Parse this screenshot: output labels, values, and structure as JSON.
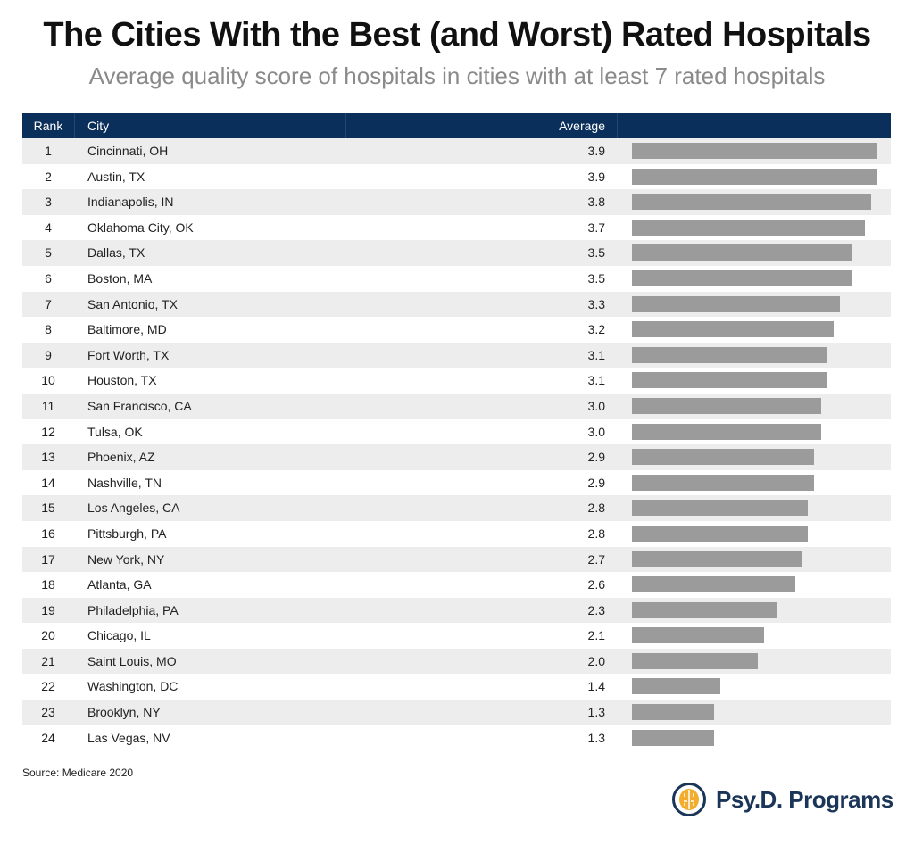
{
  "title": "The Cities With the Best (and Worst) Rated Hospitals",
  "subtitle": "Average quality score of hospitals in cities with at least 7 rated hospitals",
  "source": "Source: Medicare 2020",
  "logo": {
    "text": "Psy.D. Programs",
    "icon": "brain-icon"
  },
  "colors": {
    "header": "#0b2f5b",
    "bar": "#9b9b9b",
    "stripe": "#ededed",
    "logo": "#1a3558",
    "logo_accent": "#f2ad2e"
  },
  "chart_data": {
    "type": "bar",
    "orientation": "horizontal",
    "title": "The Cities With the Best (and Worst) Rated Hospitals",
    "columns": [
      "Rank",
      "City",
      "Average"
    ],
    "xlim": [
      0,
      3.9
    ],
    "grid": false,
    "rows": [
      {
        "rank": "1",
        "city": "Cincinnati, OH",
        "avg": "3.9"
      },
      {
        "rank": "2",
        "city": "Austin, TX",
        "avg": "3.9"
      },
      {
        "rank": "3",
        "city": "Indianapolis, IN",
        "avg": "3.8"
      },
      {
        "rank": "4",
        "city": "Oklahoma City, OK",
        "avg": "3.7"
      },
      {
        "rank": "5",
        "city": "Dallas, TX",
        "avg": "3.5"
      },
      {
        "rank": "6",
        "city": "Boston, MA",
        "avg": "3.5"
      },
      {
        "rank": "7",
        "city": "San Antonio, TX",
        "avg": "3.3"
      },
      {
        "rank": "8",
        "city": "Baltimore, MD",
        "avg": "3.2"
      },
      {
        "rank": "9",
        "city": "Fort Worth, TX",
        "avg": "3.1"
      },
      {
        "rank": "10",
        "city": "Houston, TX",
        "avg": "3.1"
      },
      {
        "rank": "11",
        "city": "San Francisco, CA",
        "avg": "3.0"
      },
      {
        "rank": "12",
        "city": "Tulsa, OK",
        "avg": "3.0"
      },
      {
        "rank": "13",
        "city": "Phoenix, AZ",
        "avg": "2.9"
      },
      {
        "rank": "14",
        "city": "Nashville, TN",
        "avg": "2.9"
      },
      {
        "rank": "15",
        "city": "Los Angeles, CA",
        "avg": "2.8"
      },
      {
        "rank": "16",
        "city": "Pittsburgh, PA",
        "avg": "2.8"
      },
      {
        "rank": "17",
        "city": "New York, NY",
        "avg": "2.7"
      },
      {
        "rank": "18",
        "city": "Atlanta, GA",
        "avg": "2.6"
      },
      {
        "rank": "19",
        "city": "Philadelphia, PA",
        "avg": "2.3"
      },
      {
        "rank": "20",
        "city": "Chicago, IL",
        "avg": "2.1"
      },
      {
        "rank": "21",
        "city": "Saint Louis, MO",
        "avg": "2.0"
      },
      {
        "rank": "22",
        "city": "Washington, DC",
        "avg": "1.4"
      },
      {
        "rank": "23",
        "city": "Brooklyn, NY",
        "avg": "1.3"
      },
      {
        "rank": "24",
        "city": "Las Vegas, NV",
        "avg": "1.3"
      }
    ]
  }
}
